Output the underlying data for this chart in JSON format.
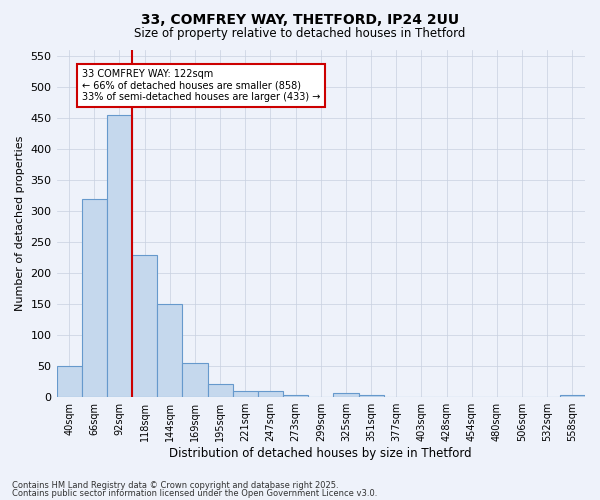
{
  "title1": "33, COMFREY WAY, THETFORD, IP24 2UU",
  "title2": "Size of property relative to detached houses in Thetford",
  "xlabel": "Distribution of detached houses by size in Thetford",
  "ylabel": "Number of detached properties",
  "categories": [
    "40sqm",
    "66sqm",
    "92sqm",
    "118sqm",
    "144sqm",
    "169sqm",
    "195sqm",
    "221sqm",
    "247sqm",
    "273sqm",
    "299sqm",
    "325sqm",
    "351sqm",
    "377sqm",
    "403sqm",
    "428sqm",
    "454sqm",
    "480sqm",
    "506sqm",
    "532sqm",
    "558sqm"
  ],
  "values": [
    50,
    320,
    455,
    230,
    150,
    55,
    22,
    10,
    10,
    3,
    0,
    7,
    3,
    0,
    0,
    0,
    0,
    0,
    0,
    0,
    3
  ],
  "bar_color": "#c5d8ed",
  "bar_edge_color": "#6699cc",
  "vline_color": "#cc0000",
  "annotation_text": "33 COMFREY WAY: 122sqm\n← 66% of detached houses are smaller (858)\n33% of semi-detached houses are larger (433) →",
  "annotation_box_color": "#ffffff",
  "annotation_box_edge": "#cc0000",
  "footer1": "Contains HM Land Registry data © Crown copyright and database right 2025.",
  "footer2": "Contains public sector information licensed under the Open Government Licence v3.0.",
  "background_color": "#eef2fa",
  "grid_color": "#c8d0e0",
  "ylim": [
    0,
    560
  ],
  "yticks": [
    0,
    50,
    100,
    150,
    200,
    250,
    300,
    350,
    400,
    450,
    500,
    550
  ]
}
